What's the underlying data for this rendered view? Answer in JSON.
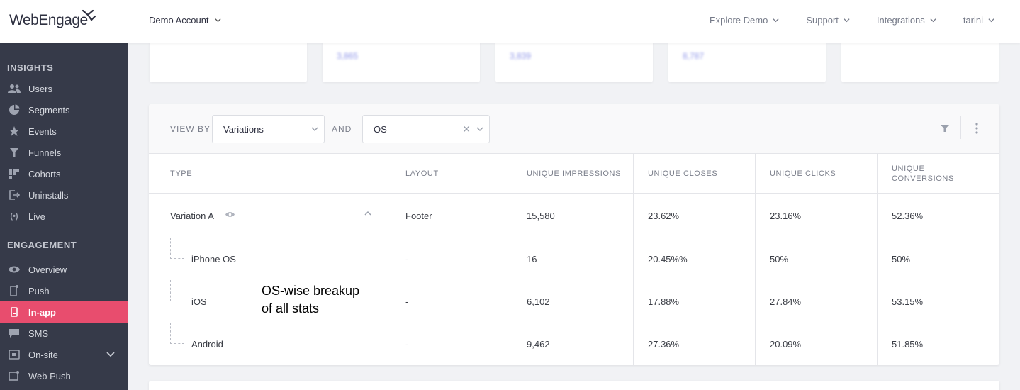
{
  "header": {
    "logo_text": "WebEngage",
    "account": "Demo Account",
    "nav": [
      {
        "label": "Explore Demo"
      },
      {
        "label": "Support"
      },
      {
        "label": "Integrations"
      },
      {
        "label": "tarini"
      }
    ]
  },
  "sidebar": {
    "sections": [
      {
        "title": "INSIGHTS",
        "items": [
          {
            "label": "Users",
            "icon": "users-icon"
          },
          {
            "label": "Segments",
            "icon": "pie-icon"
          },
          {
            "label": "Events",
            "icon": "star-icon"
          },
          {
            "label": "Funnels",
            "icon": "funnel-icon"
          },
          {
            "label": "Cohorts",
            "icon": "grid-icon"
          },
          {
            "label": "Uninstalls",
            "icon": "exit-icon"
          },
          {
            "label": "Live",
            "icon": "broadcast-icon"
          }
        ]
      },
      {
        "title": "ENGAGEMENT",
        "items": [
          {
            "label": "Overview",
            "icon": "eye-icon"
          },
          {
            "label": "Push",
            "icon": "mobile-push-icon"
          },
          {
            "label": "In-app",
            "icon": "mobile-icon",
            "active": true
          },
          {
            "label": "SMS",
            "icon": "chat-icon"
          },
          {
            "label": "On-site",
            "icon": "onsite-icon",
            "expandable": true
          },
          {
            "label": "Web Push",
            "icon": "webpush-icon"
          }
        ]
      }
    ]
  },
  "stat_cards": [
    "",
    "3,865",
    "3,839",
    "8,787",
    ""
  ],
  "filters": {
    "view_by_label": "VIEW BY",
    "view_by_value": "Variations",
    "and_label": "AND",
    "and_value": "OS"
  },
  "table": {
    "headers": [
      "TYPE",
      "LAYOUT",
      "UNIQUE IMPRESSIONS",
      "UNIQUE CLOSES",
      "UNIQUE CLICKS",
      "UNIQUE CONVERSIONS"
    ],
    "rows": [
      {
        "type": "Variation A",
        "layout": "Footer",
        "impressions": "15,580",
        "closes": "23.62%",
        "clicks": "23.16%",
        "conversions": "52.36%"
      },
      {
        "type": "iPhone OS",
        "layout": "-",
        "impressions": "16",
        "closes": "20.45%%",
        "clicks": "50%",
        "conversions": "50%"
      },
      {
        "type": "iOS",
        "layout": "-",
        "impressions": "6,102",
        "closes": "17.88%",
        "clicks": "27.84%",
        "conversions": "53.15%"
      },
      {
        "type": "Android",
        "layout": "-",
        "impressions": "9,462",
        "closes": "27.36%",
        "clicks": "20.09%",
        "conversions": "51.85%"
      }
    ]
  },
  "annotation": {
    "line1": "OS-wise breakup",
    "line2": "of all stats"
  },
  "colors": {
    "sidebar_bg": "#363a49",
    "active_item": "#e84d6e",
    "accent": "#8e95e8"
  }
}
